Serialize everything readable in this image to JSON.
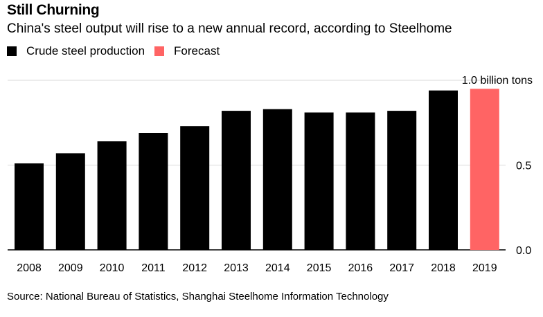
{
  "header": {
    "title": "Still Churning",
    "subtitle": "China's steel output will rise to a new annual record, according to Steelhome"
  },
  "legend": {
    "items": [
      {
        "label": "Crude steel production",
        "color": "#000000"
      },
      {
        "label": "Forecast",
        "color": "#ff6464"
      }
    ]
  },
  "footer": {
    "source": "Source: National Bureau of Statistics, Shanghai Steelhome Information Technology"
  },
  "chart_data": {
    "type": "bar",
    "categories": [
      "2008",
      "2009",
      "2010",
      "2011",
      "2012",
      "2013",
      "2014",
      "2015",
      "2016",
      "2017",
      "2018",
      "2019"
    ],
    "series": [
      {
        "name": "Crude steel production",
        "color": "#000000",
        "values": [
          0.51,
          0.57,
          0.64,
          0.69,
          0.73,
          0.82,
          0.83,
          0.81,
          0.81,
          0.82,
          0.94,
          null
        ]
      },
      {
        "name": "Forecast",
        "color": "#ff6464",
        "values": [
          null,
          null,
          null,
          null,
          null,
          null,
          null,
          null,
          null,
          null,
          null,
          0.95
        ]
      }
    ],
    "y_ticks": [
      {
        "value": 0,
        "label": "0.0"
      },
      {
        "value": 0.5,
        "label": "0.5"
      },
      {
        "value": 1.0,
        "label": "1.0 billion tons"
      }
    ],
    "ylim": [
      0,
      1.0
    ],
    "grid": true,
    "y_axis_position": "right",
    "legend_position": "top-left"
  }
}
